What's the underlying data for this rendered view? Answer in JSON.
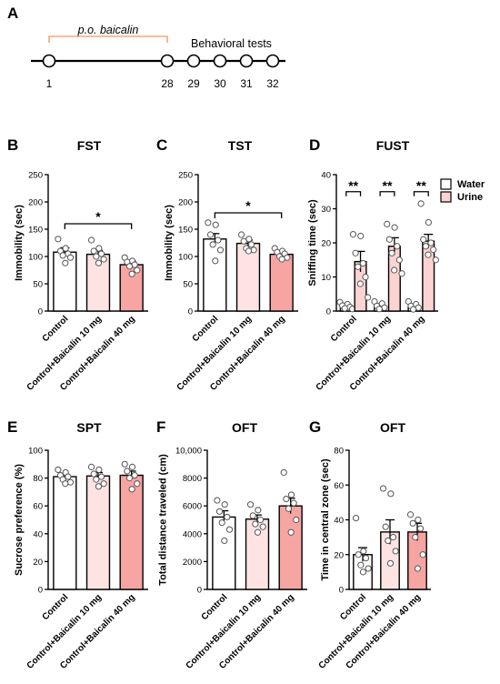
{
  "figure": {
    "panel_a": {
      "letter": "A",
      "treatment_label": "p.o. baicalin",
      "tests_label": "Behavioral tests",
      "days": [
        "1",
        "28",
        "29",
        "30",
        "31",
        "32"
      ],
      "treatment_color": "#f0a878"
    },
    "colors": {
      "control": "#ffffff",
      "baicalin_10": "#fde4e3",
      "baicalin_40": "#f7a5a2",
      "water": "#ffffff",
      "urine": "#fbd3d1",
      "stroke": "#000000",
      "dot": "#ffffff"
    },
    "legend": {
      "water": "Water",
      "urine": "Urine"
    }
  },
  "chart_data": [
    {
      "id": "B",
      "letter": "B",
      "title": "FST",
      "type": "bar",
      "ylabel": "Immobility (sec)",
      "ylim": [
        0,
        250
      ],
      "yticks": [
        0,
        50,
        100,
        150,
        200,
        250
      ],
      "categories": [
        "Control",
        "Control+Baicalin 10 mg",
        "Control+Baicalin 40 mg"
      ],
      "values": [
        108,
        104,
        85
      ],
      "errors": [
        8,
        7,
        6
      ],
      "points": [
        [
          132,
          115,
          110,
          105,
          102,
          98,
          88
        ],
        [
          130,
          115,
          110,
          105,
          100,
          95,
          88
        ],
        [
          98,
          92,
          90,
          85,
          82,
          75,
          68
        ]
      ],
      "significance": [
        {
          "from": 0,
          "to": 2,
          "y": 160,
          "label": "*"
        }
      ]
    },
    {
      "id": "C",
      "letter": "C",
      "title": "TST",
      "type": "bar",
      "ylabel": "Immobility (sec)",
      "ylim": [
        0,
        250
      ],
      "yticks": [
        0,
        50,
        100,
        150,
        200,
        250
      ],
      "categories": [
        "Control",
        "Control+Baicalin 10 mg",
        "Control+Baicalin 40 mg"
      ],
      "values": [
        132,
        124,
        104
      ],
      "errors": [
        10,
        6,
        4
      ],
      "points": [
        [
          162,
          158,
          140,
          130,
          122,
          112,
          92
        ],
        [
          140,
          132,
          128,
          122,
          115,
          112,
          110
        ],
        [
          115,
          110,
          108,
          105,
          100,
          98,
          95
        ]
      ],
      "significance": [
        {
          "from": 0,
          "to": 2,
          "y": 180,
          "label": "*"
        }
      ]
    },
    {
      "id": "D",
      "letter": "D",
      "title": "FUST",
      "type": "bar",
      "ylabel": "Sniffing time (sec)",
      "ylim": [
        0,
        40
      ],
      "yticks": [
        0,
        10,
        20,
        30,
        40
      ],
      "categories": [
        "Control",
        "Control+Baicalin 10 mg",
        "Control+Baicalin 40 mg"
      ],
      "series": [
        {
          "name": "Water",
          "values": [
            1.5,
            1.5,
            1.5
          ],
          "errors": [
            0.4,
            0.4,
            0.4
          ],
          "points": [
            [
              2.6,
              2.0,
              1.6,
              1.2,
              0.8,
              0.6
            ],
            [
              2.8,
              2.2,
              1.5,
              1.0,
              0.6
            ],
            [
              2.8,
              2.0,
              1.5,
              1.0,
              0.5
            ]
          ]
        },
        {
          "name": "Urine",
          "values": [
            14.5,
            19,
            20.5
          ],
          "errors": [
            3,
            2.5,
            2
          ],
          "points": [
            [
              22.5,
              22,
              17,
              14,
              13,
              10,
              8,
              4
            ],
            [
              25.5,
              24.5,
              21,
              19,
              17,
              15,
              12,
              11
            ],
            [
              31.5,
              26,
              21,
              20,
              19,
              18,
              16.5,
              15
            ]
          ]
        }
      ],
      "significance": [
        {
          "group": 0,
          "y": 35,
          "label": "**"
        },
        {
          "group": 1,
          "y": 35,
          "label": "**"
        },
        {
          "group": 2,
          "y": 35,
          "label": "**"
        }
      ],
      "legend_position": "top-right"
    },
    {
      "id": "E",
      "letter": "E",
      "title": "SPT",
      "type": "bar",
      "ylabel": "Sucrose preference (%)",
      "ylim": [
        0,
        100
      ],
      "yticks": [
        0,
        20,
        40,
        60,
        80,
        100
      ],
      "categories": [
        "Control",
        "Control+Baicalin 10 mg",
        "Control+Baicalin 40 mg"
      ],
      "values": [
        81,
        81.5,
        82
      ],
      "errors": [
        1.5,
        2.5,
        3
      ],
      "points": [
        [
          86,
          84,
          82,
          81,
          79,
          77,
          76
        ],
        [
          88,
          86,
          83,
          81,
          79,
          76,
          74
        ],
        [
          90,
          88,
          85,
          82,
          80,
          76,
          72
        ]
      ],
      "significance": []
    },
    {
      "id": "F",
      "letter": "F",
      "title": "OFT",
      "type": "bar",
      "ylabel": "Total distance traveled (cm)",
      "ylim": [
        0,
        10000
      ],
      "yticks": [
        0,
        2000,
        4000,
        6000,
        8000,
        10000
      ],
      "ytick_labels": [
        "0",
        "2000",
        "4000",
        "6000",
        "8000",
        "10,000"
      ],
      "categories": [
        "Control",
        "Control+Baicalin 10 mg",
        "Control+Baicalin 40 mg"
      ],
      "values": [
        5200,
        5050,
        6000
      ],
      "errors": [
        450,
        300,
        550
      ],
      "points": [
        [
          6400,
          6100,
          5600,
          5200,
          4800,
          4300,
          3500
        ],
        [
          6100,
          5700,
          5300,
          5000,
          4700,
          4500,
          4100
        ],
        [
          8400,
          6800,
          6500,
          6200,
          5800,
          5000,
          4100
        ]
      ],
      "significance": []
    },
    {
      "id": "G",
      "letter": "G",
      "title": "OFT",
      "type": "bar",
      "ylabel": "Time in central zone (sec)",
      "ylim": [
        0,
        80
      ],
      "yticks": [
        0,
        20,
        40,
        60,
        80
      ],
      "categories": [
        "Control",
        "Control+Baicalin 10 mg",
        "Control+Baicalin 40 mg"
      ],
      "values": [
        20,
        33,
        33
      ],
      "errors": [
        4,
        7,
        5
      ],
      "points": [
        [
          41,
          22,
          20,
          18,
          14,
          12,
          10
        ],
        [
          58,
          55,
          36,
          30,
          28,
          22,
          15
        ],
        [
          43,
          40,
          38,
          35,
          30,
          20,
          12
        ]
      ],
      "significance": []
    }
  ]
}
